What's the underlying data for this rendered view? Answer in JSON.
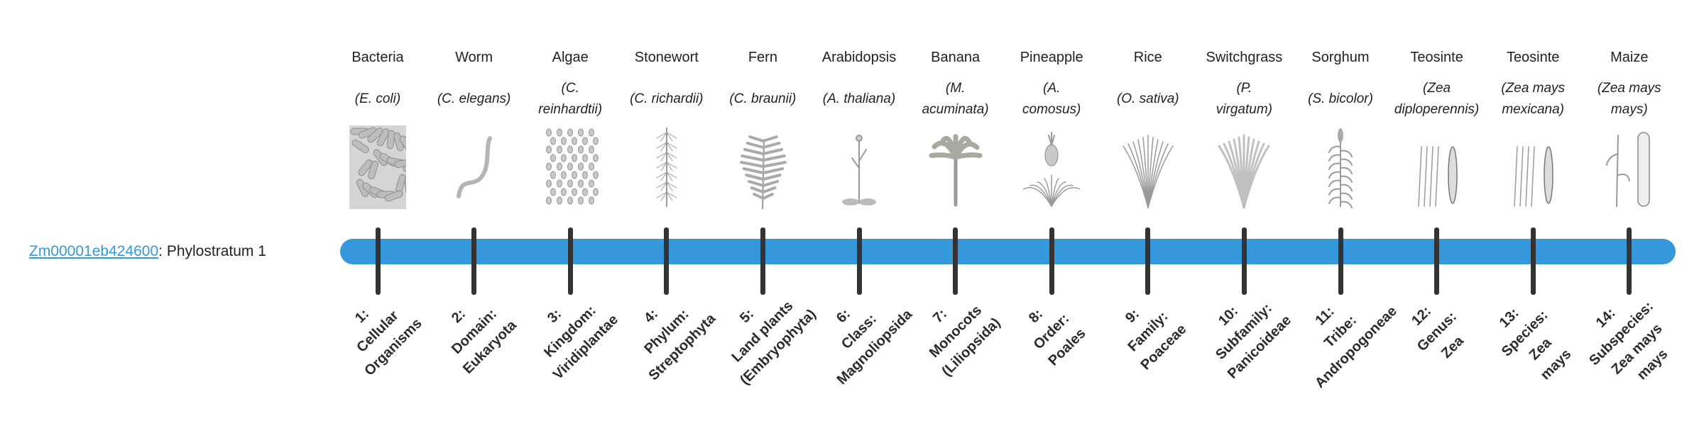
{
  "gene": {
    "id": "Zm00001eb424600",
    "separator": ":",
    "suffix": " Phylostratum 1"
  },
  "colors": {
    "bar": "#3498db",
    "tick": "#333333",
    "link": "#3498db",
    "illustration": "#9a9a9a"
  },
  "columns": [
    {
      "common": "Bacteria",
      "latin": [
        "(E. coli)"
      ],
      "icon": "bacteria-icon",
      "stratum": [
        "1:",
        "Cellular",
        "Organisms"
      ]
    },
    {
      "common": "Worm",
      "latin": [
        "(C. elegans)"
      ],
      "icon": "worm-icon",
      "stratum": [
        "2:",
        "Domain:",
        "Eukaryota"
      ]
    },
    {
      "common": "Algae",
      "latin": [
        "(C.",
        "reinhardtii)"
      ],
      "icon": "algae-icon",
      "stratum": [
        "3:",
        "Kingdom:",
        "Viridiplantae"
      ]
    },
    {
      "common": "Stonewort",
      "latin": [
        "(C. richardii)"
      ],
      "icon": "stonewort-icon",
      "stratum": [
        "4:",
        "Phylum:",
        "Streptophyta"
      ]
    },
    {
      "common": "Fern",
      "latin": [
        "(C. braunii)"
      ],
      "icon": "fern-icon",
      "stratum": [
        "5:",
        "Land plants",
        "(Embryophyta)"
      ]
    },
    {
      "common": "Arabidopsis",
      "latin": [
        "(A. thaliana)"
      ],
      "icon": "arabidopsis-icon",
      "stratum": [
        "6:",
        "Class:",
        "Magnoliopsida"
      ]
    },
    {
      "common": "Banana",
      "latin": [
        "(M.",
        "acuminata)"
      ],
      "icon": "banana-icon",
      "stratum": [
        "7:",
        "Monocots",
        "(Liliopsida)"
      ]
    },
    {
      "common": "Pineapple",
      "latin": [
        "(A.",
        "comosus)"
      ],
      "icon": "pineapple-icon",
      "stratum": [
        "8:",
        "Order:",
        "Poales"
      ]
    },
    {
      "common": "Rice",
      "latin": [
        "(O. sativa)"
      ],
      "icon": "rice-icon",
      "stratum": [
        "9:",
        "Family:",
        "Poaceae"
      ]
    },
    {
      "common": "Switchgrass",
      "latin": [
        "(P.",
        "virgatum)"
      ],
      "icon": "switchgrass-icon",
      "stratum": [
        "10:",
        "Subfamily:",
        "Panicoideae"
      ]
    },
    {
      "common": "Sorghum",
      "latin": [
        "(S. bicolor)"
      ],
      "icon": "sorghum-icon",
      "stratum": [
        "11:",
        "Tribe:",
        "Andropogoneae"
      ]
    },
    {
      "common": "Teosinte",
      "latin": [
        "(Zea",
        "diploperennis)"
      ],
      "icon": "teosinte-icon",
      "stratum": [
        "12:",
        "Genus:",
        "Zea"
      ]
    },
    {
      "common": "Teosinte",
      "latin": [
        "(Zea mays",
        "mexicana)"
      ],
      "icon": "teosinte-icon",
      "stratum": [
        "13:",
        "Species:",
        "Zea",
        "mays"
      ]
    },
    {
      "common": "Maize",
      "latin": [
        "(Zea mays",
        "mays)"
      ],
      "icon": "maize-icon",
      "stratum": [
        "14:",
        "Subspecies:",
        "Zea mays",
        "mays"
      ]
    }
  ]
}
